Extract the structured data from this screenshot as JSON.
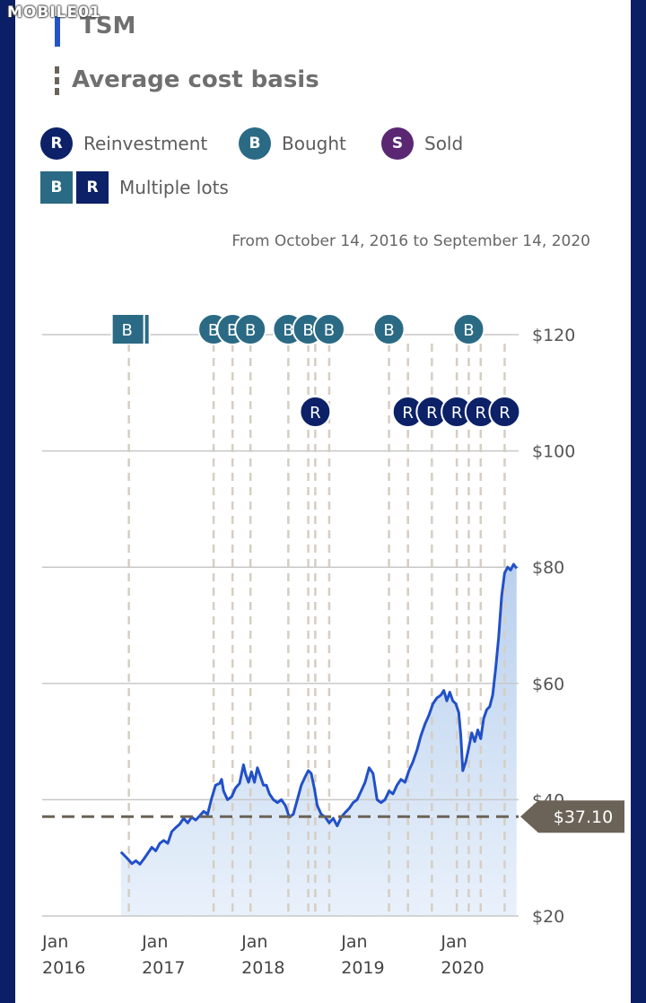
{
  "watermark": "MOBILE01",
  "ticker": "TSM",
  "avg_title": "Average cost basis",
  "legend": {
    "reinvestment": {
      "glyph": "R",
      "label": "Reinvestment",
      "color": "#0c2167"
    },
    "bought": {
      "glyph": "B",
      "label": "Bought",
      "color": "#2b6a84"
    },
    "sold": {
      "glyph": "S",
      "label": "Sold",
      "color": "#5b2773"
    },
    "multiple": {
      "glyph_b": "B",
      "glyph_r": "R",
      "label": "Multiple lots"
    }
  },
  "date_range": "From October 14, 2016 to September 14, 2020",
  "chart_data": {
    "type": "area",
    "y_ticks": [
      {
        "value": 20,
        "label": "$20"
      },
      {
        "value": 40,
        "label": "$40"
      },
      {
        "value": 60,
        "label": "$60"
      },
      {
        "value": 80,
        "label": "$80"
      },
      {
        "value": 100,
        "label": "$100"
      },
      {
        "value": 120,
        "label": "$120"
      }
    ],
    "x_ticks": [
      {
        "x": 2016.0,
        "month": "Jan",
        "year": "2016"
      },
      {
        "x": 2017.0,
        "month": "Jan",
        "year": "2017"
      },
      {
        "x": 2018.0,
        "month": "Jan",
        "year": "2018"
      },
      {
        "x": 2019.0,
        "month": "Jan",
        "year": "2019"
      },
      {
        "x": 2020.0,
        "month": "Jan",
        "year": "2020"
      }
    ],
    "ylim": [
      20,
      120
    ],
    "xlim": [
      2016.0,
      2020.78
    ],
    "average_cost_basis": {
      "value": 37.1,
      "label": "$37.10"
    },
    "price_series": [
      [
        2016.79,
        31.0
      ],
      [
        2016.82,
        30.5
      ],
      [
        2016.86,
        29.8
      ],
      [
        2016.9,
        29.0
      ],
      [
        2016.94,
        29.5
      ],
      [
        2016.98,
        28.9
      ],
      [
        2017.02,
        29.8
      ],
      [
        2017.06,
        30.8
      ],
      [
        2017.1,
        31.8
      ],
      [
        2017.14,
        31.2
      ],
      [
        2017.18,
        32.5
      ],
      [
        2017.22,
        33.0
      ],
      [
        2017.26,
        32.5
      ],
      [
        2017.3,
        34.5
      ],
      [
        2017.34,
        35.2
      ],
      [
        2017.38,
        35.8
      ],
      [
        2017.42,
        36.8
      ],
      [
        2017.46,
        36.0
      ],
      [
        2017.5,
        37.0
      ],
      [
        2017.54,
        36.5
      ],
      [
        2017.58,
        37.2
      ],
      [
        2017.62,
        38.0
      ],
      [
        2017.66,
        37.5
      ],
      [
        2017.7,
        40.2
      ],
      [
        2017.74,
        42.5
      ],
      [
        2017.78,
        42.8
      ],
      [
        2017.8,
        43.5
      ],
      [
        2017.82,
        41.5
      ],
      [
        2017.86,
        40.0
      ],
      [
        2017.9,
        40.5
      ],
      [
        2017.94,
        42.0
      ],
      [
        2017.98,
        42.8
      ],
      [
        2018.02,
        46.0
      ],
      [
        2018.04,
        44.5
      ],
      [
        2018.07,
        43.0
      ],
      [
        2018.1,
        44.8
      ],
      [
        2018.13,
        43.0
      ],
      [
        2018.16,
        45.5
      ],
      [
        2018.19,
        44.0
      ],
      [
        2018.22,
        42.5
      ],
      [
        2018.25,
        42.5
      ],
      [
        2018.28,
        41.0
      ],
      [
        2018.32,
        40.0
      ],
      [
        2018.36,
        39.5
      ],
      [
        2018.4,
        40.0
      ],
      [
        2018.44,
        39.0
      ],
      [
        2018.48,
        37.0
      ],
      [
        2018.52,
        37.5
      ],
      [
        2018.56,
        40.0
      ],
      [
        2018.6,
        42.5
      ],
      [
        2018.64,
        44.0
      ],
      [
        2018.67,
        45.0
      ],
      [
        2018.7,
        44.5
      ],
      [
        2018.73,
        42.0
      ],
      [
        2018.76,
        39.0
      ],
      [
        2018.8,
        37.5
      ],
      [
        2018.84,
        37.0
      ],
      [
        2018.88,
        36.0
      ],
      [
        2018.92,
        36.8
      ],
      [
        2018.96,
        35.5
      ],
      [
        2019.0,
        37.0
      ],
      [
        2019.04,
        37.8
      ],
      [
        2019.08,
        38.5
      ],
      [
        2019.12,
        39.5
      ],
      [
        2019.16,
        40.0
      ],
      [
        2019.2,
        41.5
      ],
      [
        2019.24,
        43.0
      ],
      [
        2019.28,
        45.5
      ],
      [
        2019.32,
        44.5
      ],
      [
        2019.36,
        40.0
      ],
      [
        2019.4,
        39.5
      ],
      [
        2019.44,
        40.0
      ],
      [
        2019.48,
        41.5
      ],
      [
        2019.52,
        41.0
      ],
      [
        2019.56,
        42.5
      ],
      [
        2019.6,
        43.5
      ],
      [
        2019.64,
        43.0
      ],
      [
        2019.68,
        45.0
      ],
      [
        2019.72,
        46.5
      ],
      [
        2019.76,
        48.5
      ],
      [
        2019.8,
        51.0
      ],
      [
        2019.84,
        53.0
      ],
      [
        2019.88,
        54.5
      ],
      [
        2019.92,
        56.5
      ],
      [
        2019.96,
        57.5
      ],
      [
        2020.0,
        58.0
      ],
      [
        2020.03,
        58.8
      ],
      [
        2020.06,
        57.0
      ],
      [
        2020.09,
        58.5
      ],
      [
        2020.12,
        57.0
      ],
      [
        2020.15,
        56.5
      ],
      [
        2020.18,
        55.0
      ],
      [
        2020.2,
        51.0
      ],
      [
        2020.22,
        45.0
      ],
      [
        2020.25,
        46.5
      ],
      [
        2020.28,
        49.0
      ],
      [
        2020.31,
        51.5
      ],
      [
        2020.34,
        50.0
      ],
      [
        2020.37,
        52.0
      ],
      [
        2020.4,
        50.5
      ],
      [
        2020.43,
        54.0
      ],
      [
        2020.46,
        55.5
      ],
      [
        2020.49,
        56.0
      ],
      [
        2020.52,
        58.0
      ],
      [
        2020.55,
        62.5
      ],
      [
        2020.58,
        68.0
      ],
      [
        2020.61,
        75.0
      ],
      [
        2020.64,
        79.0
      ],
      [
        2020.67,
        80.0
      ],
      [
        2020.7,
        79.5
      ],
      [
        2020.73,
        80.5
      ],
      [
        2020.76,
        79.8
      ]
    ],
    "transaction_markers": {
      "top_row": [
        {
          "x": 2016.87,
          "type": "multiple",
          "glyph": "B"
        },
        {
          "x": 2017.72,
          "type": "bought",
          "glyph": "B"
        },
        {
          "x": 2017.91,
          "type": "bought",
          "glyph": "B"
        },
        {
          "x": 2018.09,
          "type": "bought",
          "glyph": "B"
        },
        {
          "x": 2018.47,
          "type": "bought",
          "glyph": "B"
        },
        {
          "x": 2018.67,
          "type": "bought",
          "glyph": "B"
        },
        {
          "x": 2018.88,
          "type": "bought",
          "glyph": "B"
        },
        {
          "x": 2019.48,
          "type": "bought",
          "glyph": "B"
        },
        {
          "x": 2020.28,
          "type": "bought",
          "glyph": "B"
        }
      ],
      "reinvest_row": [
        {
          "x": 2018.74,
          "type": "reinvestment",
          "glyph": "R"
        },
        {
          "x": 2019.67,
          "type": "reinvestment",
          "glyph": "R"
        },
        {
          "x": 2019.91,
          "type": "reinvestment",
          "glyph": "R"
        },
        {
          "x": 2020.16,
          "type": "reinvestment",
          "glyph": "R"
        },
        {
          "x": 2020.4,
          "type": "reinvestment",
          "glyph": "R"
        },
        {
          "x": 2020.64,
          "type": "reinvestment",
          "glyph": "R"
        }
      ]
    },
    "colors": {
      "line": "#2150c8",
      "area_top": "#b9d0ee",
      "area_bottom": "#e9f1fb",
      "grid": "#c8c8c8",
      "avg_line": "#6b6357",
      "avg_label_bg": "#6b6357",
      "guide": "#d5cec2"
    }
  }
}
